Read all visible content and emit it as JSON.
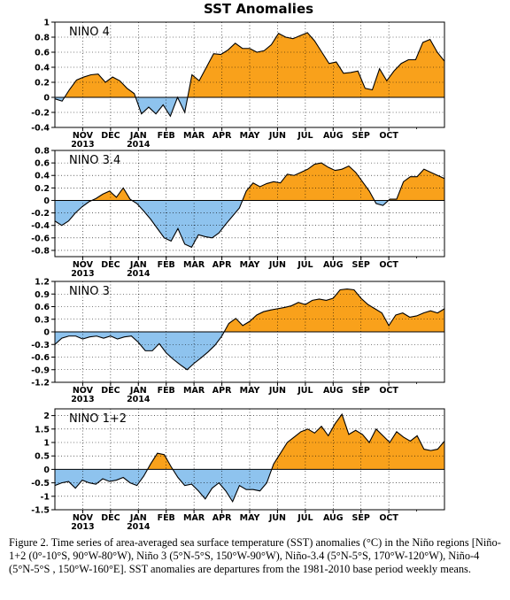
{
  "figure_title": "SST Anomalies",
  "caption": "Figure 2. Time series of area-averaged sea surface temperature (SST) anomalies (°C) in the Niño regions [Niño-1+2 (0°-10°S, 90°W-80°W), Niño 3 (5°N-5°S, 150°W-90°W), Niño-3.4 (5°N-5°S, 170°W-120°W), Niño-4 (5°N-5°S , 150°W-160°E]. SST anomalies are departures from the 1981-2010 base period weekly means.",
  "colors": {
    "positive": "#F9A11B",
    "negative": "#8EC3EE"
  },
  "month_ticks": [
    {
      "label": "NOV",
      "year": "2013",
      "t": 0.0714
    },
    {
      "label": "DEC",
      "year": "",
      "t": 0.1429
    },
    {
      "label": "JAN",
      "year": "2014",
      "t": 0.2143
    },
    {
      "label": "FEB",
      "year": "",
      "t": 0.2857
    },
    {
      "label": "MAR",
      "year": "",
      "t": 0.3571
    },
    {
      "label": "APR",
      "year": "",
      "t": 0.4286
    },
    {
      "label": "MAY",
      "year": "",
      "t": 0.5
    },
    {
      "label": "JUN",
      "year": "",
      "t": 0.5714
    },
    {
      "label": "JUL",
      "year": "",
      "t": 0.6429
    },
    {
      "label": "AUG",
      "year": "",
      "t": 0.7143
    },
    {
      "label": "SEP",
      "year": "",
      "t": 0.7857
    },
    {
      "label": "OCT",
      "year": "",
      "t": 0.8571
    }
  ],
  "chart_data": [
    {
      "type": "area",
      "title": "NINO 4",
      "ylim": [
        -0.4,
        1
      ],
      "yticks": [
        -0.4,
        -0.2,
        0,
        0.2,
        0.4,
        0.6,
        0.8,
        1
      ],
      "ytick_labels": [
        "-0.4",
        "-0.2",
        "0",
        "0.2",
        "0.4",
        "0.6",
        "0.8",
        "1"
      ],
      "grid": true,
      "values": [
        -0.02,
        -0.05,
        0.1,
        0.23,
        0.27,
        0.3,
        0.31,
        0.2,
        0.27,
        0.22,
        0.12,
        0.05,
        -0.22,
        -0.13,
        -0.22,
        -0.1,
        -0.25,
        0.0,
        -0.2,
        0.3,
        0.22,
        0.4,
        0.58,
        0.57,
        0.63,
        0.72,
        0.65,
        0.65,
        0.6,
        0.62,
        0.7,
        0.85,
        0.8,
        0.78,
        0.82,
        0.86,
        0.75,
        0.6,
        0.45,
        0.47,
        0.32,
        0.33,
        0.35,
        0.12,
        0.1,
        0.38,
        0.22,
        0.35,
        0.45,
        0.5,
        0.5,
        0.73,
        0.77,
        0.6,
        0.48
      ]
    },
    {
      "type": "area",
      "title": "NINO 3.4",
      "ylim": [
        -0.9,
        0.8
      ],
      "yticks": [
        -0.8,
        -0.6,
        -0.4,
        -0.2,
        0,
        0.2,
        0.4,
        0.6,
        0.8
      ],
      "ytick_labels": [
        "-0.8",
        "-0.6",
        "-0.4",
        "-0.2",
        "0",
        "0.2",
        "0.4",
        "0.6",
        "0.8"
      ],
      "grid": true,
      "values": [
        -0.33,
        -0.4,
        -0.33,
        -0.2,
        -0.1,
        -0.02,
        0.03,
        0.1,
        0.15,
        0.05,
        0.2,
        0.02,
        -0.05,
        -0.17,
        -0.3,
        -0.45,
        -0.6,
        -0.65,
        -0.45,
        -0.7,
        -0.75,
        -0.55,
        -0.58,
        -0.6,
        -0.52,
        -0.38,
        -0.25,
        -0.12,
        0.15,
        0.28,
        0.22,
        0.27,
        0.3,
        0.28,
        0.42,
        0.4,
        0.45,
        0.5,
        0.58,
        0.6,
        0.53,
        0.48,
        0.5,
        0.55,
        0.45,
        0.3,
        0.15,
        -0.05,
        -0.08,
        0.02,
        0.02,
        0.3,
        0.38,
        0.38,
        0.5,
        0.45,
        0.4,
        0.35
      ]
    },
    {
      "type": "area",
      "title": "NINO 3",
      "ylim": [
        -1.2,
        1.2
      ],
      "yticks": [
        -1.2,
        -0.9,
        -0.6,
        -0.3,
        0,
        0.3,
        0.6,
        0.9,
        1.2
      ],
      "ytick_labels": [
        "-1.2",
        "-0.9",
        "-0.6",
        "-0.3",
        "0",
        "0.3",
        "0.6",
        "0.9",
        "1.2"
      ],
      "grid": true,
      "values": [
        -0.3,
        -0.15,
        -0.1,
        -0.1,
        -0.17,
        -0.12,
        -0.1,
        -0.15,
        -0.1,
        -0.17,
        -0.12,
        -0.1,
        -0.25,
        -0.45,
        -0.45,
        -0.28,
        -0.5,
        -0.65,
        -0.78,
        -0.9,
        -0.75,
        -0.62,
        -0.48,
        -0.32,
        -0.1,
        0.2,
        0.32,
        0.15,
        0.25,
        0.4,
        0.48,
        0.52,
        0.55,
        0.58,
        0.62,
        0.7,
        0.65,
        0.75,
        0.78,
        0.75,
        0.8,
        1.0,
        1.02,
        1.0,
        0.8,
        0.65,
        0.55,
        0.45,
        0.15,
        0.4,
        0.45,
        0.35,
        0.38,
        0.45,
        0.5,
        0.45,
        0.55
      ]
    },
    {
      "type": "area",
      "title": "NINO 1+2",
      "ylim": [
        -1.5,
        2.25
      ],
      "yticks": [
        -1.5,
        -1,
        -0.5,
        0,
        0.5,
        1,
        1.5,
        2
      ],
      "ytick_labels": [
        "-1.5",
        "-1",
        "-0.5",
        "0",
        "0.5",
        "1",
        "1.5",
        "2"
      ],
      "grid": true,
      "values": [
        -0.6,
        -0.5,
        -0.45,
        -0.7,
        -0.4,
        -0.5,
        -0.55,
        -0.35,
        -0.45,
        -0.4,
        -0.3,
        -0.5,
        -0.6,
        -0.25,
        0.2,
        0.6,
        0.55,
        0.1,
        -0.3,
        -0.6,
        -0.55,
        -0.8,
        -1.1,
        -0.7,
        -0.5,
        -0.8,
        -1.2,
        -0.6,
        -0.75,
        -0.75,
        -0.8,
        -0.5,
        0.2,
        0.6,
        1.0,
        1.2,
        1.4,
        1.5,
        1.35,
        1.6,
        1.25,
        1.7,
        2.05,
        1.3,
        1.45,
        1.3,
        1.0,
        1.5,
        1.25,
        1.0,
        1.4,
        1.2,
        1.05,
        1.25,
        0.75,
        0.7,
        0.75,
        1.05
      ]
    }
  ]
}
